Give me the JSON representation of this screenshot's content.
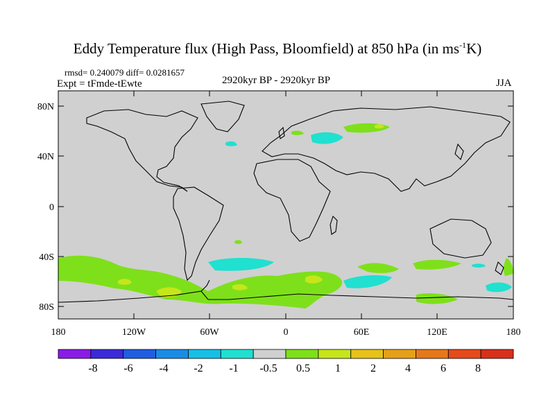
{
  "title": {
    "main": "Eddy Temperature flux (High Pass, Bloomfield) at 850 hPa (in ms",
    "sup": "-1",
    "end": "K)"
  },
  "header": {
    "stats": "rmsd= 0.240079 diff= 0.0281657",
    "expt": "Expt = tFmde-tEwte",
    "period": "2920kyr BP - 2920kyr BP",
    "season": "JJA"
  },
  "axes": {
    "lat_ticks": [
      "80N",
      "40N",
      "0",
      "40S",
      "80S"
    ],
    "lon_ticks": [
      "180",
      "120W",
      "60W",
      "0",
      "60E",
      "120E",
      "180"
    ]
  },
  "colorbar": {
    "colors": [
      "#8a1be6",
      "#3a2ad8",
      "#1f5ee0",
      "#1a8ce6",
      "#16bfe6",
      "#20e0d0",
      "#d0d0d0",
      "#7ee01a",
      "#c6e61a",
      "#e6c21a",
      "#e6a01a",
      "#e6781a",
      "#e64a1a",
      "#d8301a"
    ],
    "labels": [
      "-8",
      "-6",
      "-4",
      "-2",
      "-1",
      "-0.5",
      "0.5",
      "1",
      "2",
      "4",
      "6",
      "8"
    ]
  },
  "chart_data": {
    "type": "heatmap",
    "title": "Eddy Temperature flux (High Pass, Bloomfield) at 850 hPa (in ms-1K)",
    "xlabel": "",
    "ylabel": "",
    "xlim": [
      -180,
      180
    ],
    "ylim": [
      -90,
      90
    ],
    "levels": [
      -8,
      -6,
      -4,
      -2,
      -1,
      -0.5,
      0.5,
      1,
      2,
      4,
      6,
      8
    ],
    "regions": [
      {
        "name": "southern ocean band (Pacific)",
        "level": "0.5 to 1",
        "lon": [
          -175,
          -75
        ],
        "lat": [
          -70,
          -45
        ]
      },
      {
        "name": "south-east Pacific maximum",
        "level": "1 to 4",
        "lon": [
          -100,
          -70
        ],
        "lat": [
          -75,
          -65
        ]
      },
      {
        "name": "south Atlantic negative",
        "level": "-1 to -0.5",
        "lon": [
          -60,
          -5
        ],
        "lat": [
          -55,
          -42
        ]
      },
      {
        "name": "south Atlantic/Indian positive",
        "level": "1 to 2",
        "lon": [
          -40,
          30
        ],
        "lat": [
          -70,
          -50
        ]
      },
      {
        "name": "south Indian negative",
        "level": "-1 to -0.5",
        "lon": [
          45,
          85
        ],
        "lat": [
          -68,
          -58
        ]
      },
      {
        "name": "eastern Europe positive",
        "level": "0.5 to 1",
        "lon": [
          50,
          80
        ],
        "lat": [
          55,
          65
        ]
      },
      {
        "name": "Black Sea region negative",
        "level": "-1 to -0.5",
        "lon": [
          20,
          50
        ],
        "lat": [
          44,
          50
        ]
      },
      {
        "name": "south-west Pacific negative",
        "level": "-1 to -0.5",
        "lon": [
          160,
          178
        ],
        "lat": [
          -68,
          -60
        ]
      }
    ]
  }
}
